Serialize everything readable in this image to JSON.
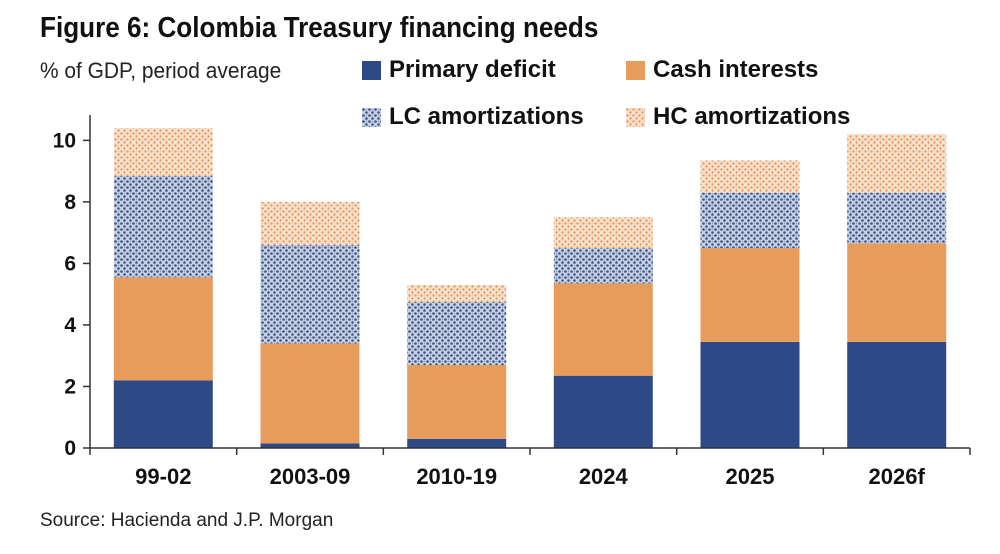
{
  "header": {
    "title": "Figure 6: Colombia Treasury financing needs",
    "subtitle": "% of GDP, period average"
  },
  "footer": {
    "source": "Source: Hacienda and J.P. Morgan"
  },
  "colors": {
    "primary_deficit": "#2e4a86",
    "cash_interests": "#e89c5c",
    "lc_amortizations": "#4a6290",
    "hc_amortizations": "#e4a87a"
  },
  "chart_data": {
    "type": "bar",
    "stacked": true,
    "title": "Figure 6: Colombia Treasury financing needs",
    "subtitle": "% of GDP, period average",
    "categories": [
      "99-02",
      "2003-09",
      "2010-19",
      "2024",
      "2025",
      "2026f"
    ],
    "series": [
      {
        "name": "Primary deficit",
        "values": [
          2.2,
          0.15,
          0.3,
          2.35,
          3.45,
          3.45
        ]
      },
      {
        "name": "Cash interests",
        "values": [
          3.35,
          3.25,
          2.4,
          3.0,
          3.05,
          3.2
        ]
      },
      {
        "name": "LC amortizations",
        "values": [
          3.3,
          3.2,
          2.05,
          1.15,
          1.8,
          1.65
        ]
      },
      {
        "name": "HC amortizations",
        "values": [
          1.55,
          1.4,
          0.55,
          1.0,
          1.05,
          1.9
        ]
      }
    ],
    "ylim": [
      0,
      10.5
    ],
    "yticks": [
      "0",
      "2",
      "4",
      "6",
      "8",
      "10"
    ],
    "legend_position": "top-right",
    "grid": false
  }
}
